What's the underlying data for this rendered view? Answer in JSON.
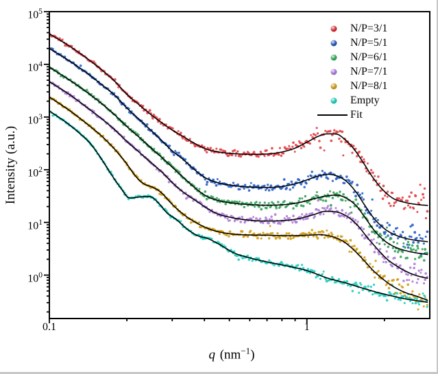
{
  "figure": {
    "y_axis_label": "Intensity (a.u.)",
    "x_axis_label_symbol": "q",
    "x_axis_label_unit_pre": " (nm",
    "x_axis_label_unit_sup": "−1",
    "x_axis_label_unit_post": ")"
  },
  "legend": {
    "items": [
      {
        "label": "N/P=3/1",
        "color": "#c8242b",
        "type": "marker"
      },
      {
        "label": "N/P=5/1",
        "color": "#1d4fae",
        "type": "marker"
      },
      {
        "label": "N/P=6/1",
        "color": "#2c9c50",
        "type": "marker"
      },
      {
        "label": "N/P=7/1",
        "color": "#9f6cce",
        "type": "marker"
      },
      {
        "label": "N/P=8/1",
        "color": "#c08e12",
        "type": "marker"
      },
      {
        "label": "Empty",
        "color": "#12bfae",
        "type": "marker"
      },
      {
        "label": "Fit",
        "color": "#000000",
        "type": "line"
      }
    ]
  },
  "chart_data": {
    "type": "scatter",
    "title": "",
    "xlabel": "q (nm⁻¹)",
    "ylabel": "Intensity (a.u.)",
    "x_scale": "log",
    "y_scale": "log",
    "xlim": [
      0.1,
      3.0
    ],
    "ylim": [
      0.15,
      100000
    ],
    "grid": false,
    "legend_position": "upper right",
    "x_major_ticks": [
      0.1,
      1
    ],
    "x_tick_labels": [
      "0.1",
      "1"
    ],
    "y_major_tick_exponents": [
      5,
      4,
      3,
      2,
      1,
      0
    ],
    "fit_color": "#000000",
    "fit_label": "Fit",
    "series": [
      {
        "name": "N/P=3/1",
        "color": "#e2454b",
        "noise": 1.25,
        "points": [
          [
            0.1,
            38000
          ],
          [
            0.12,
            22000
          ],
          [
            0.14,
            13000
          ],
          [
            0.16,
            7800
          ],
          [
            0.18,
            4700
          ],
          [
            0.2,
            2700
          ],
          [
            0.225,
            1650
          ],
          [
            0.25,
            1080
          ],
          [
            0.275,
            760
          ],
          [
            0.3,
            565
          ],
          [
            0.33,
            430
          ],
          [
            0.37,
            308
          ],
          [
            0.41,
            243
          ],
          [
            0.46,
            215
          ],
          [
            0.52,
            202
          ],
          [
            0.6,
            196
          ],
          [
            0.7,
            199
          ],
          [
            0.8,
            217
          ],
          [
            0.9,
            257
          ],
          [
            1.0,
            332
          ],
          [
            1.1,
            425
          ],
          [
            1.2,
            480
          ],
          [
            1.3,
            475
          ],
          [
            1.4,
            380
          ],
          [
            1.52,
            250
          ],
          [
            1.65,
            140
          ],
          [
            1.8,
            72
          ],
          [
            1.95,
            44
          ],
          [
            2.15,
            29
          ],
          [
            2.4,
            24
          ],
          [
            2.65,
            22
          ],
          [
            2.95,
            21
          ]
        ]
      },
      {
        "name": "N/P=5/1",
        "color": "#2a62c6",
        "noise": 1.15,
        "points": [
          [
            0.1,
            20000
          ],
          [
            0.12,
            11500
          ],
          [
            0.14,
            6800
          ],
          [
            0.16,
            4100
          ],
          [
            0.18,
            2550
          ],
          [
            0.2,
            1480
          ],
          [
            0.225,
            870
          ],
          [
            0.25,
            540
          ],
          [
            0.275,
            345
          ],
          [
            0.3,
            228
          ],
          [
            0.33,
            158
          ],
          [
            0.36,
            108
          ],
          [
            0.4,
            72
          ],
          [
            0.45,
            57
          ],
          [
            0.52,
            50
          ],
          [
            0.6,
            47
          ],
          [
            0.7,
            46
          ],
          [
            0.8,
            48
          ],
          [
            0.9,
            54
          ],
          [
            1.0,
            64
          ],
          [
            1.1,
            75
          ],
          [
            1.2,
            82
          ],
          [
            1.3,
            77
          ],
          [
            1.42,
            61
          ],
          [
            1.55,
            38
          ],
          [
            1.68,
            21
          ],
          [
            1.82,
            12
          ],
          [
            2.0,
            7.6
          ],
          [
            2.2,
            5.8
          ],
          [
            2.5,
            4.8
          ],
          [
            2.95,
            4.3
          ]
        ]
      },
      {
        "name": "N/P=6/1",
        "color": "#3aa45e",
        "noise": 1.05,
        "points": [
          [
            0.1,
            8800
          ],
          [
            0.12,
            5000
          ],
          [
            0.14,
            2950
          ],
          [
            0.16,
            1780
          ],
          [
            0.18,
            1080
          ],
          [
            0.2,
            660
          ],
          [
            0.225,
            400
          ],
          [
            0.25,
            250
          ],
          [
            0.27,
            180
          ],
          [
            0.3,
            112
          ],
          [
            0.335,
            68
          ],
          [
            0.37,
            44
          ],
          [
            0.41,
            31
          ],
          [
            0.46,
            25.5
          ],
          [
            0.52,
            23.2
          ],
          [
            0.6,
            21.8
          ],
          [
            0.7,
            21.2
          ],
          [
            0.82,
            21.8
          ],
          [
            0.94,
            24
          ],
          [
            1.06,
            28
          ],
          [
            1.18,
            31.5
          ],
          [
            1.3,
            33
          ],
          [
            1.42,
            29
          ],
          [
            1.55,
            21
          ],
          [
            1.68,
            12.5
          ],
          [
            1.82,
            7.2
          ],
          [
            2.0,
            4.5
          ],
          [
            2.2,
            3.4
          ],
          [
            2.5,
            2.8
          ],
          [
            2.95,
            2.45
          ]
        ]
      },
      {
        "name": "N/P=7/1",
        "color": "#af7fd8",
        "noise": 1.0,
        "points": [
          [
            0.1,
            4700
          ],
          [
            0.12,
            2650
          ],
          [
            0.14,
            1520
          ],
          [
            0.16,
            920
          ],
          [
            0.18,
            565
          ],
          [
            0.2,
            345
          ],
          [
            0.225,
            208
          ],
          [
            0.25,
            132
          ],
          [
            0.275,
            88
          ],
          [
            0.3,
            57
          ],
          [
            0.33,
            38
          ],
          [
            0.37,
            26
          ],
          [
            0.41,
            18.5
          ],
          [
            0.45,
            14.5
          ],
          [
            0.5,
            12.6
          ],
          [
            0.58,
            11.2
          ],
          [
            0.68,
            10.6
          ],
          [
            0.8,
            10.8
          ],
          [
            0.93,
            11.8
          ],
          [
            1.06,
            14
          ],
          [
            1.18,
            16.2
          ],
          [
            1.3,
            15.8
          ],
          [
            1.44,
            12.8
          ],
          [
            1.58,
            8.6
          ],
          [
            1.72,
            5.1
          ],
          [
            1.88,
            3.1
          ],
          [
            2.05,
            2.0
          ],
          [
            2.25,
            1.45
          ],
          [
            2.5,
            1.1
          ],
          [
            2.72,
            0.95
          ],
          [
            2.95,
            0.87
          ]
        ]
      },
      {
        "name": "N/P=8/1",
        "color": "#d19d17",
        "noise": 0.95,
        "points": [
          [
            0.1,
            2400
          ],
          [
            0.12,
            1320
          ],
          [
            0.14,
            740
          ],
          [
            0.16,
            430
          ],
          [
            0.18,
            240
          ],
          [
            0.2,
            128
          ],
          [
            0.215,
            78
          ],
          [
            0.23,
            56
          ],
          [
            0.25,
            47
          ],
          [
            0.27,
            38
          ],
          [
            0.3,
            22
          ],
          [
            0.33,
            14.5
          ],
          [
            0.36,
            10.8
          ],
          [
            0.4,
            8.2
          ],
          [
            0.44,
            6.9
          ],
          [
            0.5,
            6.1
          ],
          [
            0.58,
            5.8
          ],
          [
            0.7,
            5.7
          ],
          [
            0.85,
            5.6
          ],
          [
            1.0,
            5.7
          ],
          [
            1.12,
            5.85
          ],
          [
            1.25,
            5.4
          ],
          [
            1.38,
            4.4
          ],
          [
            1.5,
            3.2
          ],
          [
            1.65,
            2.0
          ],
          [
            1.8,
            1.25
          ],
          [
            1.95,
            0.88
          ],
          [
            2.15,
            0.62
          ],
          [
            2.4,
            0.47
          ],
          [
            2.7,
            0.39
          ],
          [
            2.95,
            0.33
          ]
        ]
      },
      {
        "name": "Empty",
        "color": "#25cfc0",
        "noise": 0.8,
        "points": [
          [
            0.1,
            1300
          ],
          [
            0.115,
            820
          ],
          [
            0.13,
            510
          ],
          [
            0.145,
            305
          ],
          [
            0.16,
            155
          ],
          [
            0.175,
            78
          ],
          [
            0.19,
            44
          ],
          [
            0.205,
            29
          ],
          [
            0.225,
            30.5
          ],
          [
            0.245,
            31
          ],
          [
            0.265,
            23.5
          ],
          [
            0.285,
            15.5
          ],
          [
            0.31,
            11.5
          ],
          [
            0.35,
            6.9
          ],
          [
            0.38,
            5.5
          ],
          [
            0.41,
            5.0
          ],
          [
            0.45,
            4.0
          ],
          [
            0.52,
            2.65
          ],
          [
            0.6,
            2.12
          ],
          [
            0.7,
            1.78
          ],
          [
            0.85,
            1.47
          ],
          [
            1.0,
            1.22
          ],
          [
            1.2,
            0.88
          ],
          [
            1.4,
            0.72
          ],
          [
            1.6,
            0.59
          ],
          [
            1.85,
            0.48
          ],
          [
            2.1,
            0.41
          ],
          [
            2.4,
            0.355
          ],
          [
            2.7,
            0.325
          ],
          [
            2.95,
            0.305
          ]
        ]
      }
    ]
  }
}
